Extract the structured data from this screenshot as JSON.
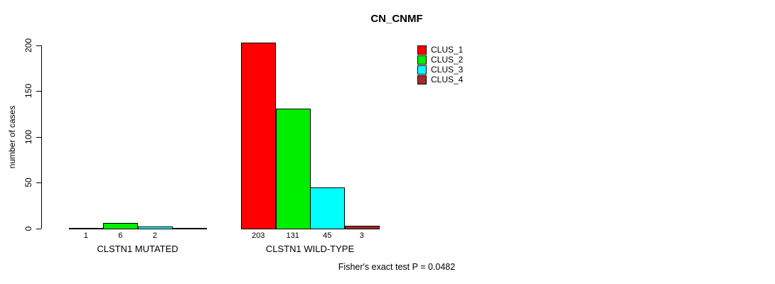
{
  "chart_data": {
    "type": "bar",
    "title": "CN_CNMF",
    "ylabel": "number of cases",
    "xlabel": "",
    "ylim": [
      0,
      200
    ],
    "yticks": [
      0,
      50,
      100,
      150,
      200
    ],
    "grid": false,
    "legend_position": "top-right-of-plot",
    "series": [
      {
        "name": "CLUS_1",
        "color": "#FF0000"
      },
      {
        "name": "CLUS_2",
        "color": "#00EE00"
      },
      {
        "name": "CLUS_3",
        "color": "#00FFFF"
      },
      {
        "name": "CLUS_4",
        "color": "#A52A2A"
      }
    ],
    "groups": [
      {
        "label": "CLSTN1 MUTATED",
        "values": [
          1,
          6,
          2,
          0
        ],
        "value_labels": [
          "1",
          "6",
          "2",
          ""
        ]
      },
      {
        "label": "CLSTN1 WILD-TYPE",
        "values": [
          203,
          131,
          45,
          3
        ],
        "value_labels": [
          "203",
          "131",
          "45",
          "3"
        ]
      }
    ],
    "annotation": "Fisher's exact test P = 0.0482"
  }
}
